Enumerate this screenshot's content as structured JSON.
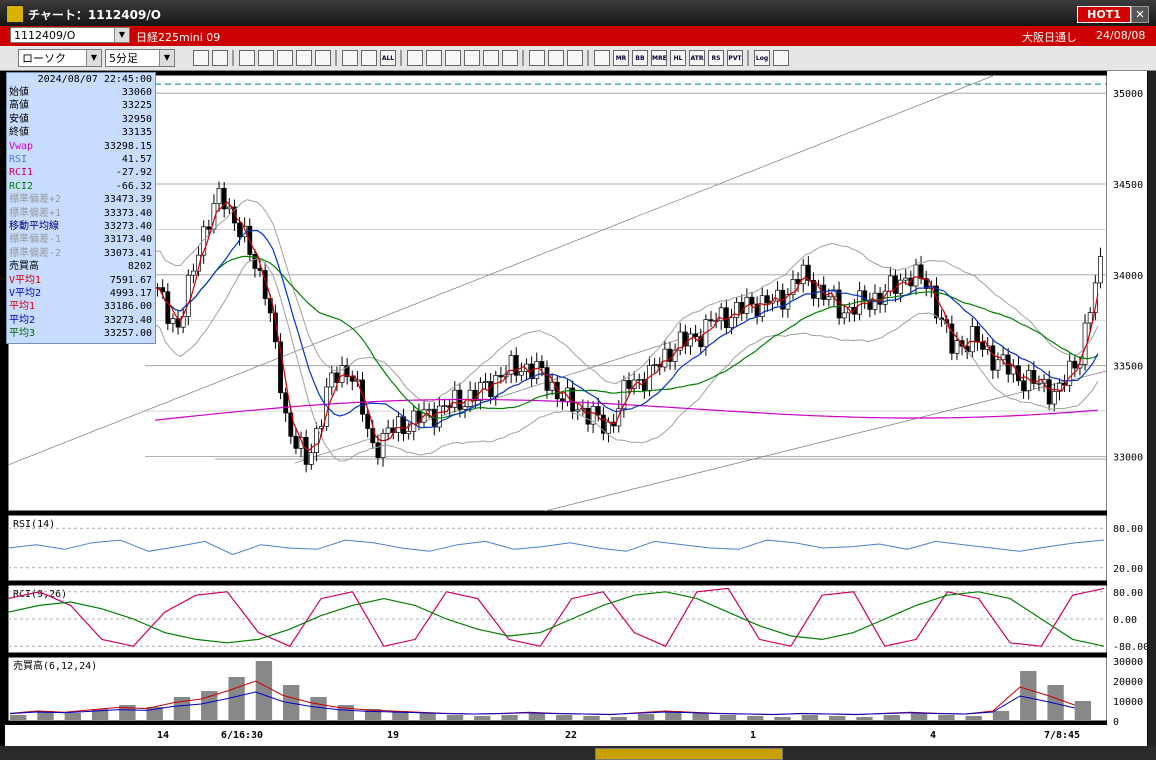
{
  "window": {
    "title": "チャート：1112409/O",
    "hot_label": "HOT1",
    "close_label": "✕"
  },
  "header": {
    "symbol_input": "1112409/O",
    "instrument": "日経225mini 09",
    "session": "大阪日通し",
    "date": "24/08/08"
  },
  "toolbar": {
    "chart_type": "ローソク",
    "interval": "5分足",
    "icons": [
      "zoom-icon",
      "crosshair-icon",
      "trend-icon",
      "search-icon",
      "candle-icon",
      "bar-icon",
      "lock-icon",
      "tick-icon",
      "value-icon",
      "all-icon",
      "pen-icon",
      "line-icon",
      "cursor-icon",
      "undo-icon",
      "copy-icon",
      "trash-icon",
      "settings-icon",
      "tool-icon",
      "color-icon",
      "ma-icon",
      "mr-icon",
      "bb-icon",
      "mre-icon",
      "hl-icon",
      "atr-icon",
      "rs-icon",
      "pvt-icon",
      "log-icon",
      "print-icon"
    ],
    "icon_labels": {
      "all": "ALL",
      "mr": "MR",
      "bb": "BB",
      "mre": "MRE",
      "hl": "HL",
      "atr": "ATR",
      "rs": "RS",
      "pvt": "PVT",
      "log": "Log"
    }
  },
  "info": {
    "timestamp": "2024/08/07  22:45:00",
    "rows": [
      {
        "label": "始値",
        "value": "33060",
        "color": "#000000"
      },
      {
        "label": "高値",
        "value": "33225",
        "color": "#000000"
      },
      {
        "label": "安値",
        "value": "32950",
        "color": "#000000"
      },
      {
        "label": "終値",
        "value": "33135",
        "color": "#000000"
      },
      {
        "label": "Vwap",
        "value": "33298.15",
        "color": "#cc00cc"
      },
      {
        "label": "RSI",
        "value": "41.57",
        "color": "#4a7fd0"
      },
      {
        "label": "RCI1",
        "value": "-27.92",
        "color": "#cc0066"
      },
      {
        "label": "RCI2",
        "value": "-66.32",
        "color": "#008000"
      },
      {
        "label": "標準偏差+2",
        "value": "33473.39",
        "color": "#9a9a9a"
      },
      {
        "label": "標準偏差+1",
        "value": "33373.40",
        "color": "#9a9a9a"
      },
      {
        "label": "移動平均線",
        "value": "33273.40",
        "color": "#000080"
      },
      {
        "label": "標準偏差-1",
        "value": "33173.40",
        "color": "#9a9a9a"
      },
      {
        "label": "標準偏差-2",
        "value": "33073.41",
        "color": "#9a9a9a"
      },
      {
        "label": "売買高",
        "value": "8202",
        "color": "#000000"
      },
      {
        "label": "V平均1",
        "value": "7591.67",
        "color": "#cc0000"
      },
      {
        "label": "V平均2",
        "value": "4993.17",
        "color": "#0000cc"
      },
      {
        "label": "平均1",
        "value": "33186.00",
        "color": "#cc0000"
      },
      {
        "label": "平均2",
        "value": "33273.40",
        "color": "#0000cc"
      },
      {
        "label": "平均3",
        "value": "33257.00",
        "color": "#006600"
      }
    ]
  },
  "chart_data": [
    {
      "type": "candlestick",
      "title": "",
      "y_ticks": [
        "35000",
        "34500",
        "34000",
        "33500",
        "33000"
      ],
      "ylim": [
        32700,
        35100
      ],
      "x_ticks": [
        "14",
        "6/16:30",
        "19",
        "22",
        "1",
        "4",
        "7/8:45"
      ],
      "close_path": [
        33900,
        33700,
        34200,
        34450,
        34200,
        33950,
        33200,
        32950,
        33400,
        33500,
        33050,
        33150,
        33200,
        33250,
        33300,
        33350,
        33450,
        33500,
        33450,
        33300,
        33250,
        33150,
        33400,
        33450,
        33600,
        33650,
        33750,
        33800,
        33850,
        33850,
        34000,
        33900,
        33800,
        33850,
        33900,
        34000,
        33950,
        33600,
        33650,
        33550,
        33450,
        33400,
        33350,
        33550,
        34050
      ],
      "colors": {
        "up": "#ffffff",
        "down": "#000000",
        "ma_short": "#cc0000",
        "ma_mid": "#0033cc",
        "ma_long": "#008000",
        "vwap": "#cc00cc",
        "bands": "#a0a0a0",
        "grid": "#000000",
        "dashed": "#008080"
      }
    },
    {
      "type": "line",
      "title": "RSI(14)",
      "y_ticks": [
        "80.00",
        "20.00"
      ],
      "ylim": [
        0,
        100
      ],
      "series": [
        {
          "values": [
            50,
            55,
            48,
            58,
            62,
            45,
            52,
            60,
            40,
            55,
            50,
            48,
            62,
            58,
            50,
            45,
            55,
            60,
            48,
            52,
            58,
            50,
            45,
            60,
            55,
            50,
            48,
            62,
            58,
            50,
            52,
            56,
            48,
            60,
            55,
            50,
            45,
            52,
            58,
            62
          ]
        }
      ]
    },
    {
      "type": "line",
      "title": "RCI(9,26)",
      "y_ticks": [
        "80.00",
        "0.00",
        "-80.00"
      ],
      "ylim": [
        -100,
        100
      ],
      "series": [
        {
          "values": [
            60,
            80,
            40,
            -60,
            -80,
            20,
            70,
            80,
            -40,
            -80,
            60,
            80,
            -80,
            -60,
            80,
            60,
            -60,
            -80,
            60,
            80,
            -40,
            -80,
            80,
            90,
            -60,
            -80,
            70,
            80,
            -80,
            -60,
            80,
            60,
            -70,
            -80,
            70,
            90
          ]
        },
        {
          "values": [
            20,
            40,
            50,
            30,
            0,
            -40,
            -60,
            -70,
            -60,
            -30,
            10,
            40,
            60,
            40,
            0,
            -30,
            -50,
            -40,
            0,
            40,
            70,
            80,
            60,
            20,
            -20,
            -50,
            -60,
            -40,
            0,
            40,
            70,
            80,
            60,
            0,
            -60,
            -80
          ]
        }
      ]
    },
    {
      "type": "bar",
      "title": "売買高(6,12,24)",
      "y_ticks": [
        "30000",
        "20000",
        "10000",
        "0"
      ],
      "ylim": [
        0,
        32000
      ],
      "values": [
        3000,
        5000,
        4000,
        6000,
        8000,
        7000,
        12000,
        15000,
        22000,
        30000,
        18000,
        12000,
        8000,
        6000,
        5000,
        4000,
        3000,
        2500,
        3000,
        4000,
        3000,
        2500,
        2000,
        3500,
        5000,
        4000,
        3000,
        2500,
        2000,
        3000,
        2500,
        2000,
        3000,
        4000,
        3000,
        2500,
        5000,
        25000,
        18000,
        10000
      ]
    }
  ]
}
